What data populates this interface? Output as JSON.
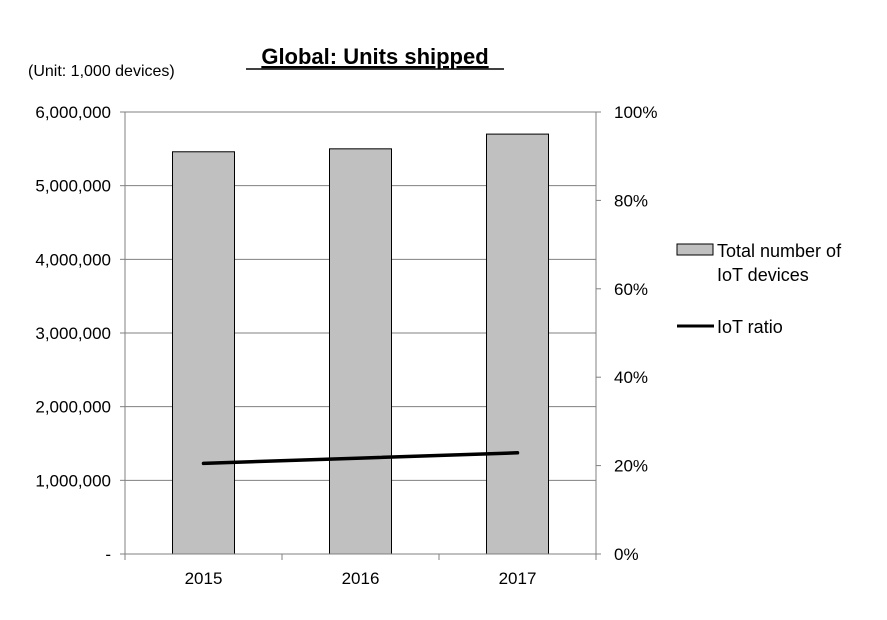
{
  "chart_data": {
    "type": "bar",
    "title": "Global: Units shipped",
    "unit_note": "(Unit: 1,000 devices)",
    "categories": [
      "2015",
      "2016",
      "2017"
    ],
    "series": [
      {
        "name": "Total number of IoT devices",
        "name_lines": [
          "Total number of",
          "IoT devices"
        ],
        "type": "bar",
        "axis": "left",
        "color": "#c0c0c0",
        "values": [
          5460000,
          5500000,
          5700000
        ]
      },
      {
        "name": "IoT ratio",
        "type": "line",
        "axis": "right",
        "color": "#000000",
        "values": [
          0.205,
          0.217,
          0.229
        ]
      }
    ],
    "y_left": {
      "ylim": [
        0,
        6000000
      ],
      "ticks": [
        0,
        1000000,
        2000000,
        3000000,
        4000000,
        5000000,
        6000000
      ],
      "tick_labels": [
        "-",
        "1,000,000",
        "2,000,000",
        "3,000,000",
        "4,000,000",
        "5,000,000",
        "6,000,000"
      ]
    },
    "y_right": {
      "ylim": [
        0,
        1
      ],
      "ticks": [
        0,
        0.2,
        0.4,
        0.6,
        0.8,
        1
      ],
      "tick_labels": [
        "0%",
        "20%",
        "40%",
        "60%",
        "80%",
        "100%"
      ]
    },
    "grid": true,
    "legend_position": "right"
  }
}
